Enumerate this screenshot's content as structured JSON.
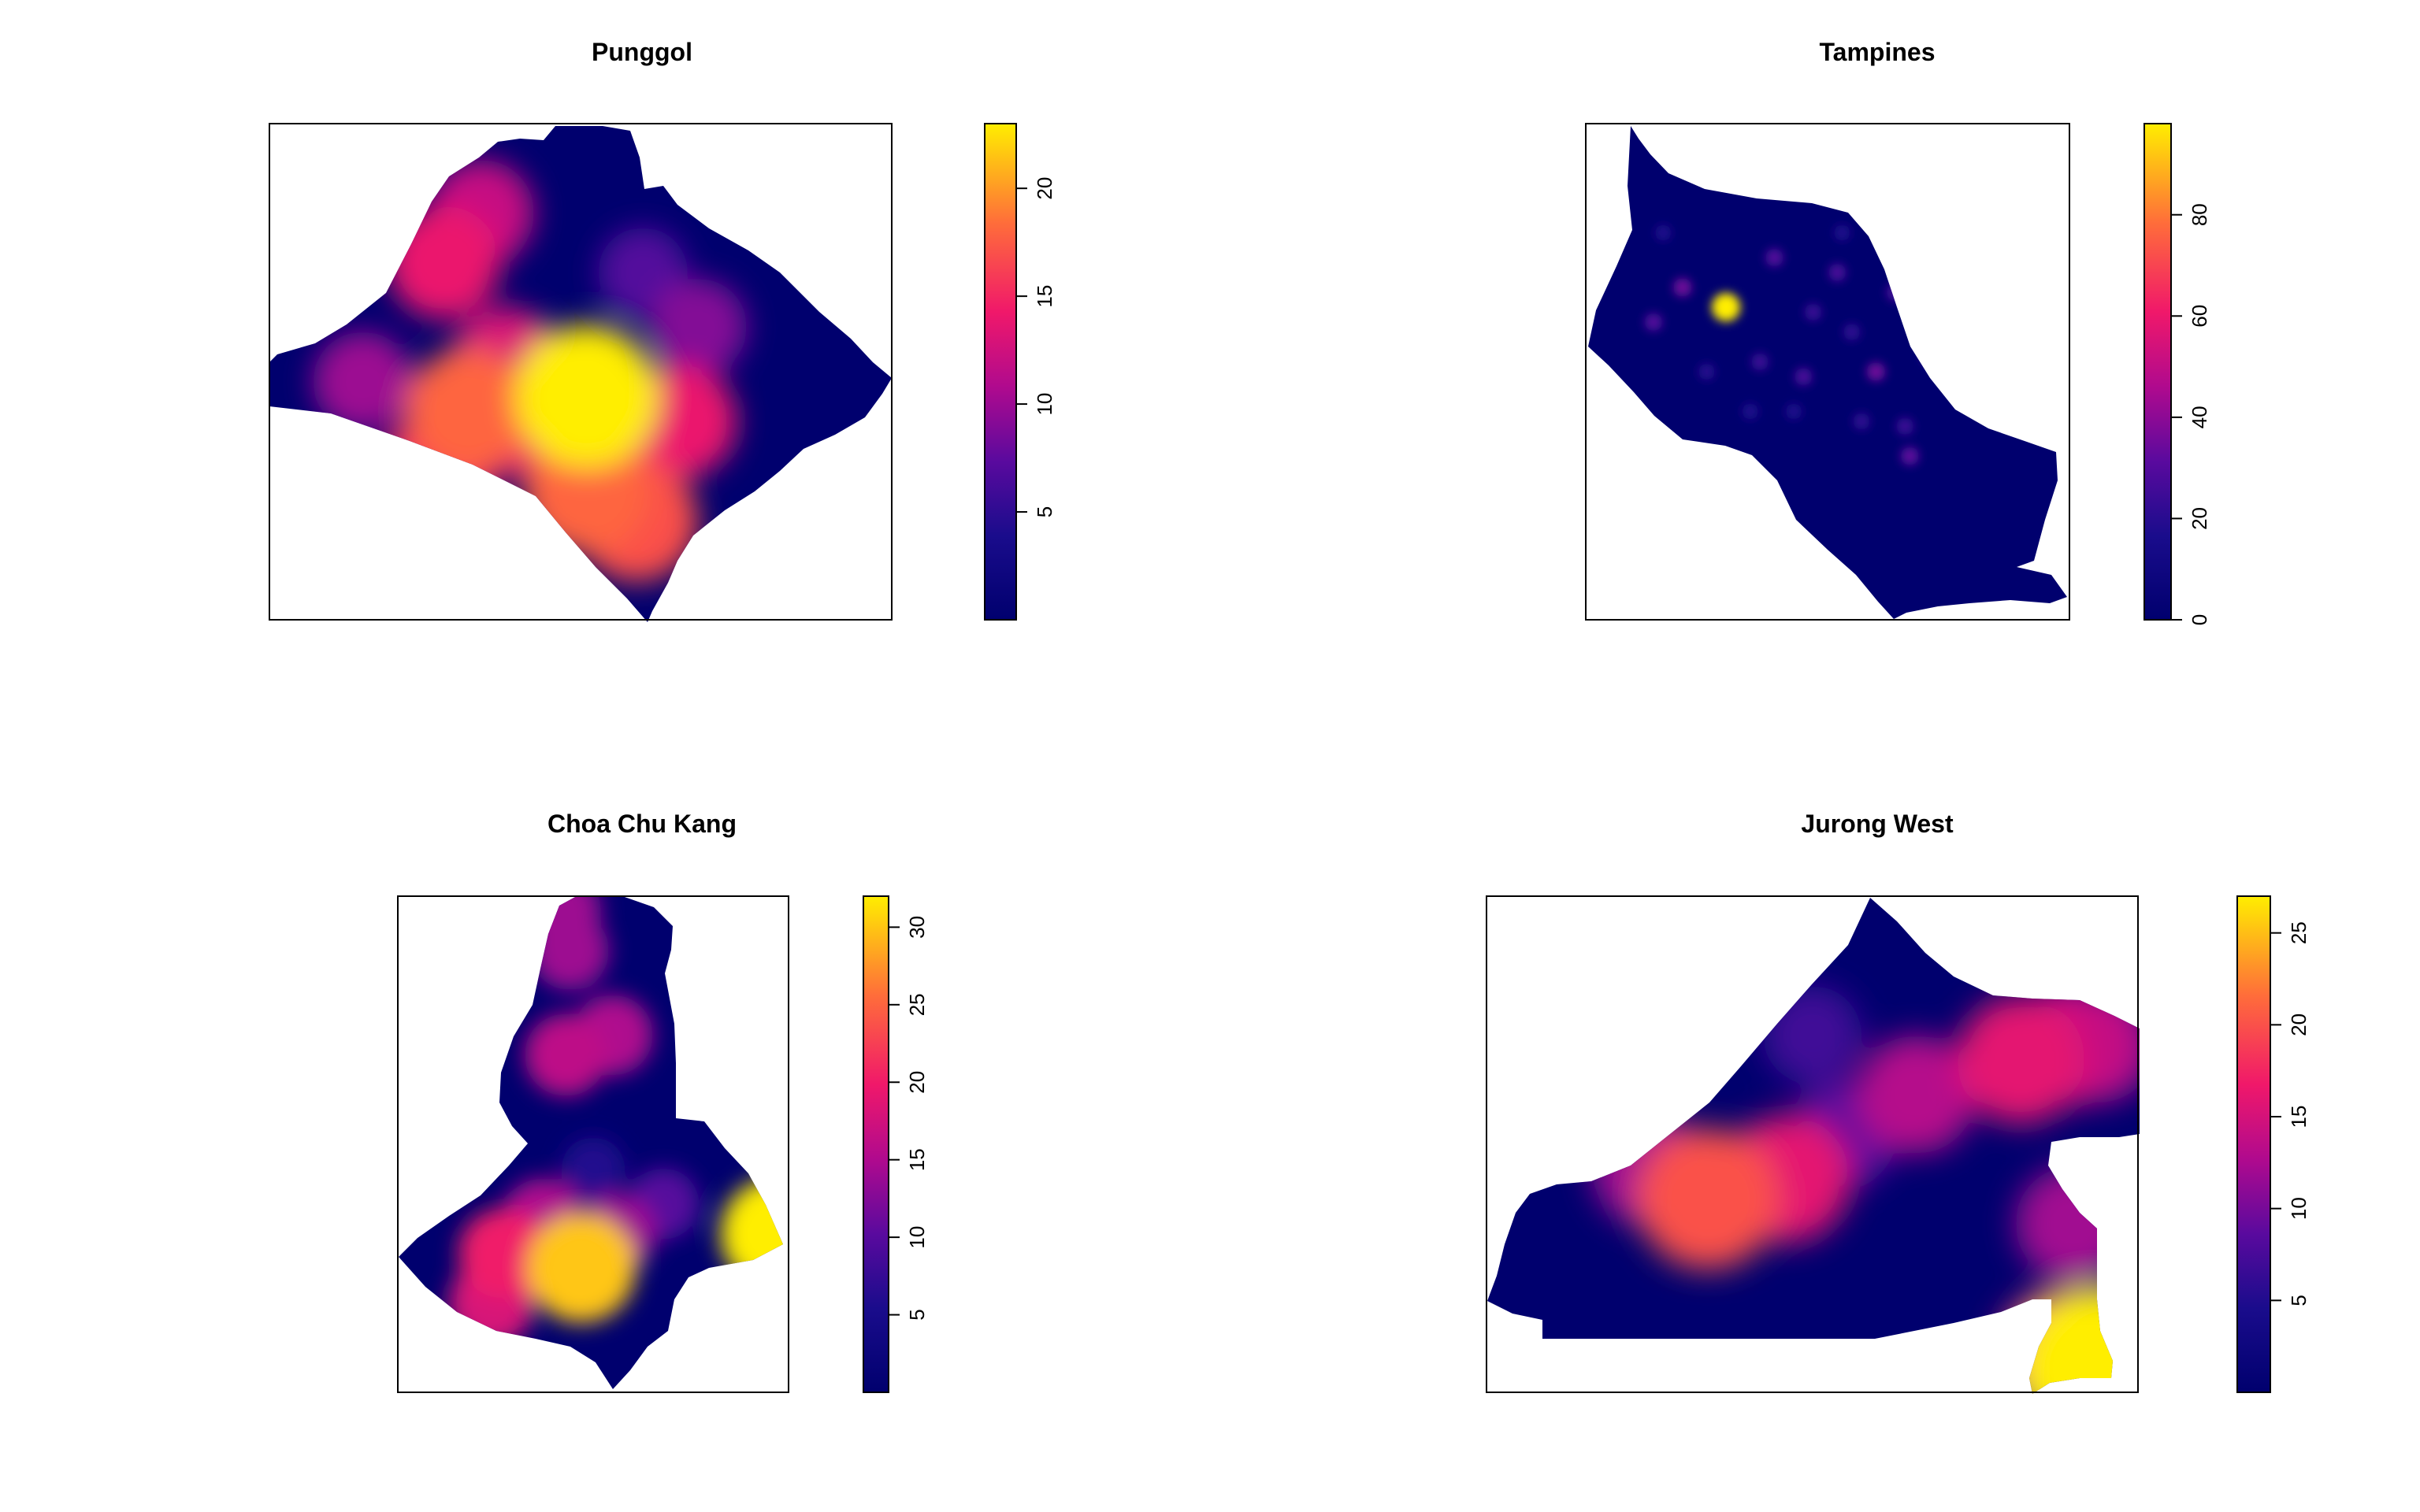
{
  "chart_data": [
    {
      "type": "heatmap",
      "title": "Punggol",
      "xlabel": "",
      "ylabel": "",
      "colorbar": {
        "min": 0,
        "max": 23,
        "ticks": [
          5,
          10,
          15,
          20
        ]
      },
      "hotspots": [
        {
          "x": 0.51,
          "y": 0.55,
          "value": 23
        },
        {
          "x": 0.51,
          "y": 0.74,
          "value": 18
        },
        {
          "x": 0.59,
          "y": 0.8,
          "value": 17
        },
        {
          "x": 0.32,
          "y": 0.58,
          "value": 18
        },
        {
          "x": 0.38,
          "y": 0.48,
          "value": 13
        },
        {
          "x": 0.27,
          "y": 0.7,
          "value": 15
        },
        {
          "x": 0.4,
          "y": 0.6,
          "value": 14
        },
        {
          "x": 0.66,
          "y": 0.6,
          "value": 14
        },
        {
          "x": 0.69,
          "y": 0.41,
          "value": 9
        },
        {
          "x": 0.28,
          "y": 0.28,
          "value": 14
        },
        {
          "x": 0.34,
          "y": 0.18,
          "value": 12
        },
        {
          "x": 0.15,
          "y": 0.52,
          "value": 10
        },
        {
          "x": 0.6,
          "y": 0.3,
          "value": 7
        }
      ]
    },
    {
      "type": "heatmap",
      "title": "Tampines",
      "xlabel": "",
      "ylabel": "",
      "colorbar": {
        "min": 0,
        "max": 98,
        "ticks": [
          0,
          20,
          40,
          60,
          80
        ]
      },
      "hotspots": [
        {
          "x": 0.29,
          "y": 0.37,
          "value": 98
        },
        {
          "x": 0.2,
          "y": 0.33,
          "value": 35
        },
        {
          "x": 0.14,
          "y": 0.4,
          "value": 30
        },
        {
          "x": 0.39,
          "y": 0.27,
          "value": 30
        },
        {
          "x": 0.52,
          "y": 0.3,
          "value": 28
        },
        {
          "x": 0.45,
          "y": 0.51,
          "value": 28
        },
        {
          "x": 0.6,
          "y": 0.5,
          "value": 35
        },
        {
          "x": 0.64,
          "y": 0.34,
          "value": 28
        },
        {
          "x": 0.67,
          "y": 0.67,
          "value": 32
        },
        {
          "x": 0.36,
          "y": 0.48,
          "value": 25
        },
        {
          "x": 0.47,
          "y": 0.38,
          "value": 24
        },
        {
          "x": 0.55,
          "y": 0.42,
          "value": 22
        },
        {
          "x": 0.25,
          "y": 0.5,
          "value": 20
        },
        {
          "x": 0.57,
          "y": 0.6,
          "value": 22
        },
        {
          "x": 0.66,
          "y": 0.61,
          "value": 25
        },
        {
          "x": 0.34,
          "y": 0.58,
          "value": 18
        },
        {
          "x": 0.43,
          "y": 0.58,
          "value": 18
        },
        {
          "x": 0.16,
          "y": 0.22,
          "value": 18
        },
        {
          "x": 0.53,
          "y": 0.22,
          "value": 18
        },
        {
          "x": 0.71,
          "y": 0.47,
          "value": 20
        }
      ]
    },
    {
      "type": "heatmap",
      "title": "Choa Chu Kang",
      "xlabel": "",
      "ylabel": "",
      "colorbar": {
        "min": 0,
        "max": 32,
        "ticks": [
          5,
          10,
          15,
          20,
          25,
          30
        ]
      },
      "hotspots": [
        {
          "x": 0.47,
          "y": 0.75,
          "value": 30
        },
        {
          "x": 0.97,
          "y": 0.68,
          "value": 32
        },
        {
          "x": 0.27,
          "y": 0.72,
          "value": 20
        },
        {
          "x": 0.24,
          "y": 0.82,
          "value": 18
        },
        {
          "x": 0.37,
          "y": 0.65,
          "value": 15
        },
        {
          "x": 0.56,
          "y": 0.68,
          "value": 14
        },
        {
          "x": 0.43,
          "y": 0.32,
          "value": 16
        },
        {
          "x": 0.55,
          "y": 0.28,
          "value": 15
        },
        {
          "x": 0.44,
          "y": 0.11,
          "value": 14
        },
        {
          "x": 0.42,
          "y": 0.03,
          "value": 14
        },
        {
          "x": 0.68,
          "y": 0.62,
          "value": 10
        },
        {
          "x": 0.5,
          "y": 0.55,
          "value": 6
        }
      ]
    },
    {
      "type": "heatmap",
      "title": "Jurong West",
      "xlabel": "",
      "ylabel": "",
      "colorbar": {
        "min": 0,
        "max": 27,
        "ticks": [
          5,
          10,
          15,
          20,
          25
        ]
      },
      "hotspots": [
        {
          "x": 0.34,
          "y": 0.61,
          "value": 20
        },
        {
          "x": 0.46,
          "y": 0.57,
          "value": 16
        },
        {
          "x": 0.25,
          "y": 0.55,
          "value": 12
        },
        {
          "x": 0.55,
          "y": 0.48,
          "value": 9
        },
        {
          "x": 0.66,
          "y": 0.4,
          "value": 13
        },
        {
          "x": 0.82,
          "y": 0.33,
          "value": 16
        },
        {
          "x": 0.9,
          "y": 0.3,
          "value": 14
        },
        {
          "x": 0.94,
          "y": 0.3,
          "value": 12
        },
        {
          "x": 0.9,
          "y": 0.66,
          "value": 12
        },
        {
          "x": 0.94,
          "y": 0.95,
          "value": 27
        },
        {
          "x": 0.88,
          "y": 0.92,
          "value": 16
        },
        {
          "x": 0.5,
          "y": 0.28,
          "value": 7
        }
      ]
    }
  ],
  "colors": {
    "low": "#000066",
    "mid_low": "#3c00aa",
    "mid": "#aa0099",
    "mid_high": "#ff2a6a",
    "high": "#ff9033",
    "max": "#ffee00"
  }
}
